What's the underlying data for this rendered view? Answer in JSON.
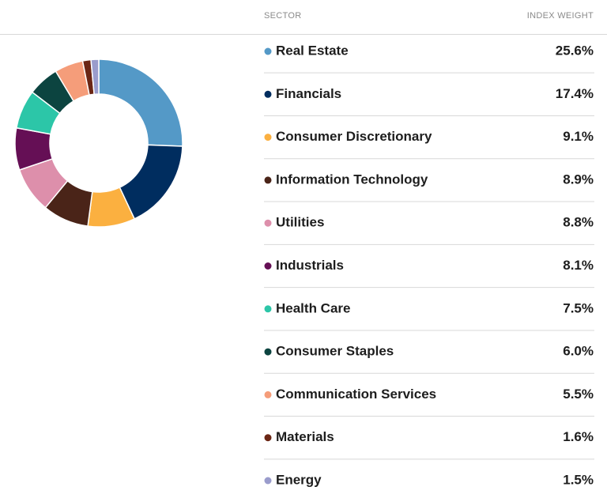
{
  "chart_data": {
    "type": "pie",
    "columns": [
      "SECTOR",
      "INDEX WEIGHT"
    ],
    "categories": [
      "Real Estate",
      "Financials",
      "Consumer Discretionary",
      "Information Technology",
      "Utilities",
      "Industrials",
      "Health Care",
      "Consumer Staples",
      "Communication Services",
      "Materials",
      "Energy"
    ],
    "values": [
      25.6,
      17.4,
      9.1,
      8.9,
      8.8,
      8.1,
      7.5,
      6.0,
      5.5,
      1.6,
      1.5
    ],
    "value_labels": [
      "25.6%",
      "17.4%",
      "9.1%",
      "8.9%",
      "8.8%",
      "8.1%",
      "7.5%",
      "6.0%",
      "5.5%",
      "1.6%",
      "1.5%"
    ],
    "colors": [
      "#5499c7",
      "#002d5f",
      "#fbb040",
      "#4a2418",
      "#dd8fab",
      "#650f55",
      "#2cc6a8",
      "#0c4440",
      "#f59d7a",
      "#6b2615",
      "#9a9ccc"
    ]
  }
}
